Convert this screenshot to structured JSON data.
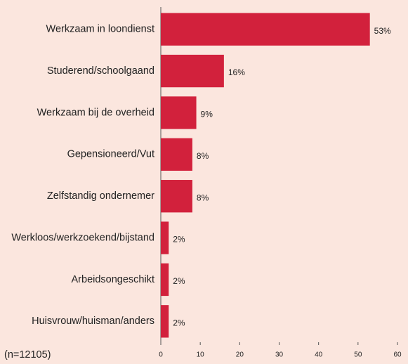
{
  "chart_data": {
    "type": "barh",
    "categories": [
      "Werkzaam in loondienst",
      "Studerend/schoolgaand",
      "Werkzaam bij de overheid",
      "Gepensioneerd/Vut",
      "Zelfstandig ondernemer",
      "Werkloos/werkzoekend/bijstand",
      "Arbeidsongeschikt",
      "Huisvrouw/huisman/anders"
    ],
    "values": [
      53,
      16,
      9,
      8,
      8,
      2,
      2,
      2
    ],
    "value_labels": [
      "53%",
      "16%",
      "9%",
      "8%",
      "8%",
      "2%",
      "2%",
      "2%"
    ],
    "color": "#d2213c",
    "xlim": [
      0,
      60
    ],
    "xticks": [
      0,
      10,
      20,
      30,
      40,
      50,
      60
    ],
    "note": "(n=12105)"
  }
}
